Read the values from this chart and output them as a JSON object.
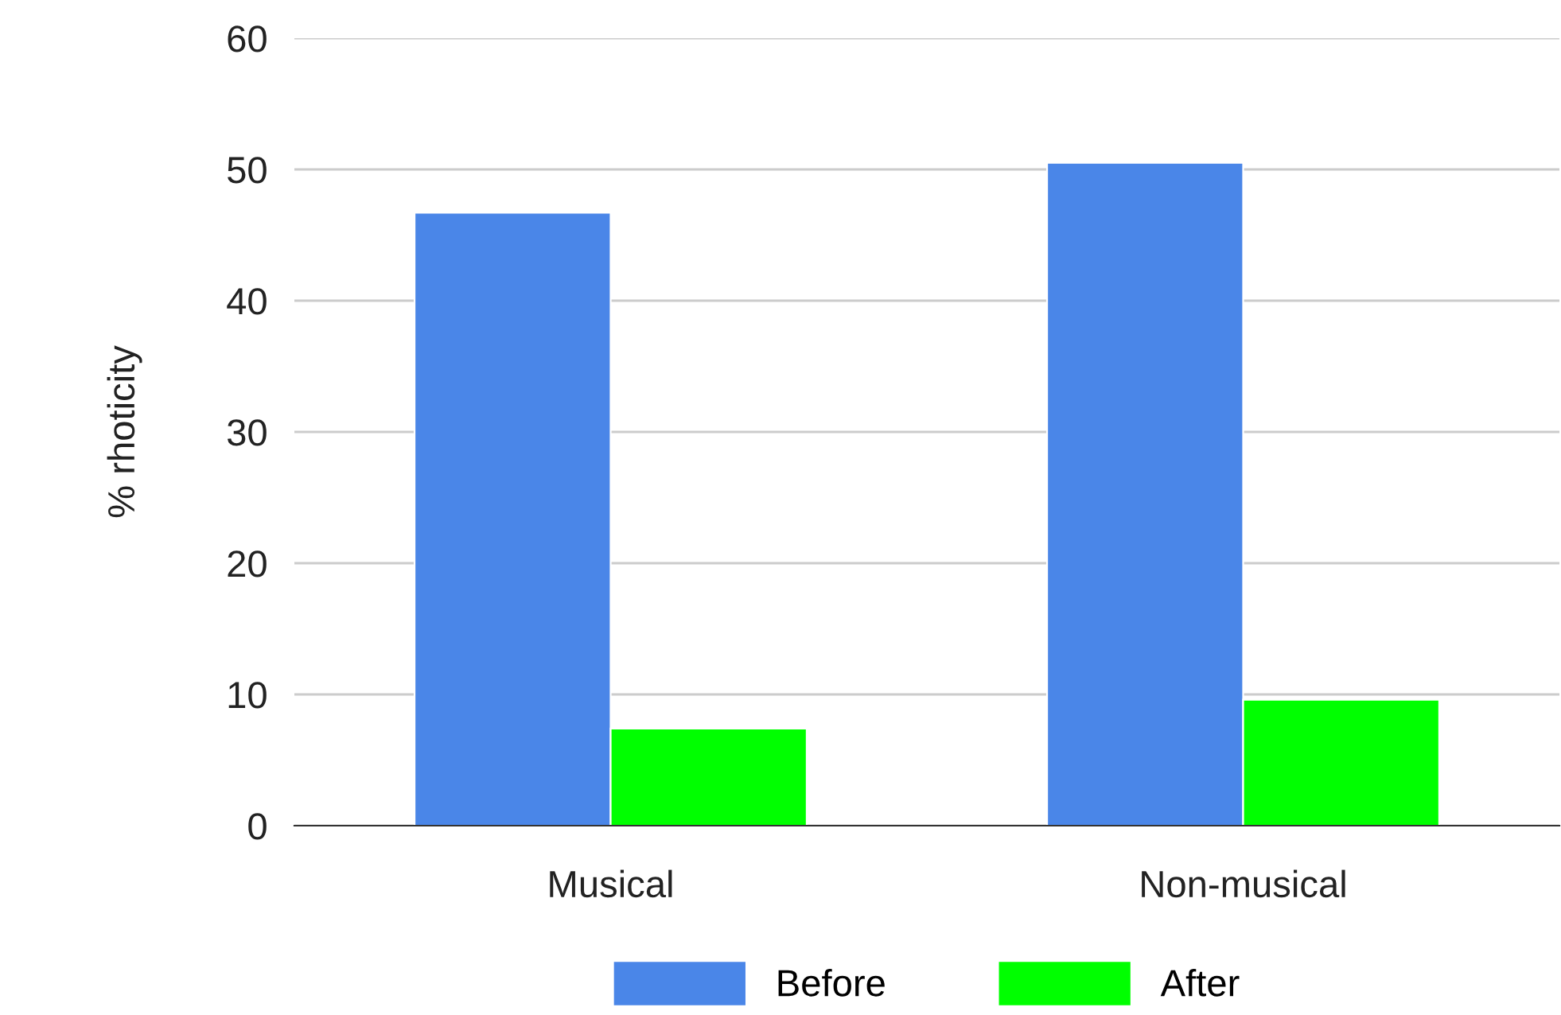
{
  "chart_data": {
    "type": "bar",
    "ylabel": "% rhoticity",
    "categories": [
      "Musical",
      "Non-musical"
    ],
    "series": [
      {
        "name": "Before",
        "color": "#4a86e8",
        "values": [
          46.7,
          50.5
        ]
      },
      {
        "name": "After",
        "color": "#00ff00",
        "values": [
          7.4,
          9.6
        ]
      }
    ],
    "ylim": [
      0,
      60
    ],
    "yticks": [
      0,
      10,
      20,
      30,
      40,
      50,
      60
    ],
    "grid": "y",
    "legend": "bottom"
  }
}
